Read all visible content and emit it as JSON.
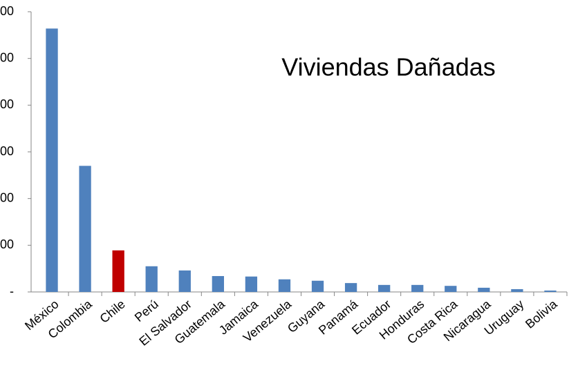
{
  "chart_data": {
    "type": "bar",
    "annotation": "Viviendas Dañadas",
    "categories": [
      "México",
      "Colombia",
      "Chile",
      "Perú",
      "El Salvador",
      "Guatemala",
      "Jamaica",
      "Venezuela",
      "Guyana",
      "Panamá",
      "Ecuador",
      "Honduras",
      "Costa Rica",
      "Nicaragua",
      "Uruguay",
      "Bolivia"
    ],
    "values": [
      564,
      270,
      89,
      55,
      46,
      34,
      33,
      27,
      24,
      19,
      15,
      15,
      13,
      9,
      6,
      3
    ],
    "colors": [
      "#4f81bd",
      "#4f81bd",
      "#c00000",
      "#4f81bd",
      "#4f81bd",
      "#4f81bd",
      "#4f81bd",
      "#4f81bd",
      "#4f81bd",
      "#4f81bd",
      "#4f81bd",
      "#4f81bd",
      "#4f81bd",
      "#4f81bd",
      "#4f81bd",
      "#4f81bd"
    ],
    "ylim": [
      0,
      600
    ],
    "yticks": [
      {
        "value": 0,
        "label": "-"
      },
      {
        "value": 100,
        "label": "00"
      },
      {
        "value": 200,
        "label": "00"
      },
      {
        "value": 300,
        "label": "00"
      },
      {
        "value": 400,
        "label": "00"
      },
      {
        "value": 500,
        "label": "00"
      },
      {
        "value": 600,
        "label": "00"
      }
    ],
    "grid": false
  }
}
